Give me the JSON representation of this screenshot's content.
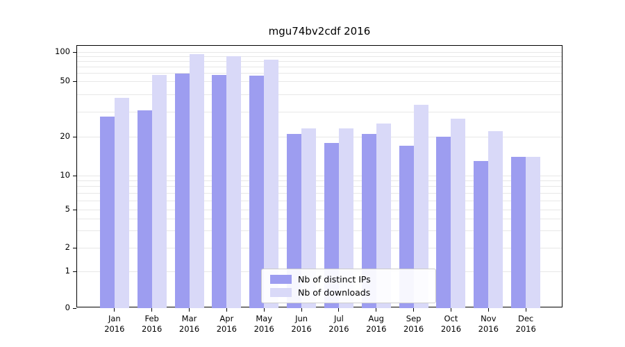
{
  "chart_data": {
    "type": "bar",
    "title": "mgu74bv2cdf 2016",
    "yscale": "symlog",
    "ylim": [
      0,
      105
    ],
    "y_ticks": [
      0,
      1,
      2,
      5,
      10,
      20,
      50,
      100
    ],
    "y_minor_ticks": [
      3,
      4,
      6,
      7,
      8,
      9,
      30,
      40,
      60,
      70,
      80,
      90
    ],
    "grid": true,
    "legend_position": "lower center",
    "categories": [
      "Jan 2016",
      "Feb 2016",
      "Mar 2016",
      "Apr 2016",
      "May 2016",
      "Jun 2016",
      "Jul 2016",
      "Aug 2016",
      "Sep 2016",
      "Oct 2016",
      "Nov 2016",
      "Dec 2016"
    ],
    "series": [
      {
        "name": "Nb of distinct IPs",
        "color": "#9d9df0",
        "values": [
          28,
          31,
          60,
          58,
          57,
          21,
          18,
          21,
          17,
          20,
          13,
          14
        ]
      },
      {
        "name": "Nb of downloads",
        "color": "#d9d9f8",
        "values": [
          38,
          58,
          95,
          90,
          83,
          23,
          23,
          25,
          34,
          27,
          22,
          14
        ]
      }
    ]
  }
}
